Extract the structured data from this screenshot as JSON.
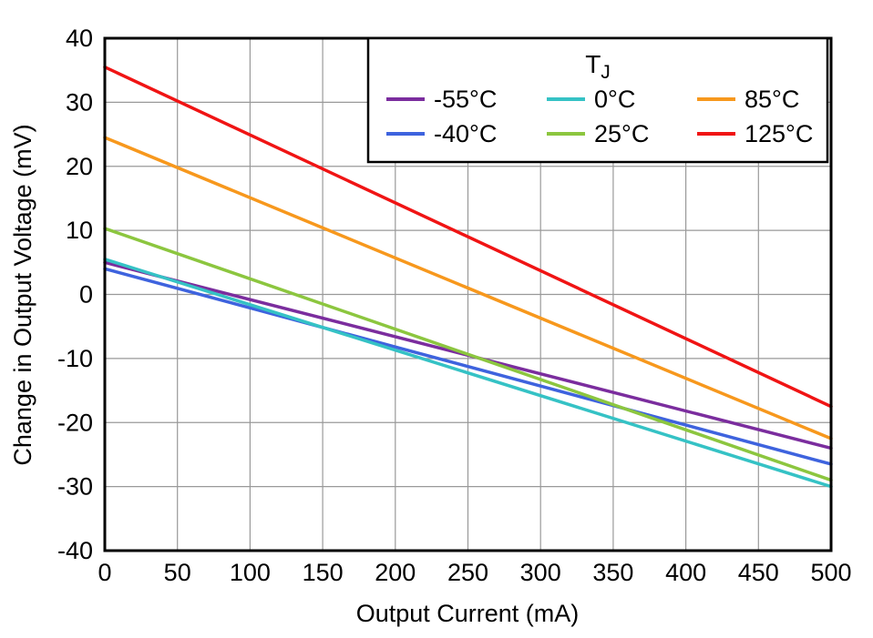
{
  "chart_data": {
    "type": "line",
    "title": "",
    "xlabel": "Output Current (mA)",
    "ylabel": "Change in Output Voltage (mV)",
    "xlim": [
      0,
      500
    ],
    "ylim": [
      -40,
      40
    ],
    "xticks": [
      0,
      50,
      100,
      150,
      200,
      250,
      300,
      350,
      400,
      450,
      500
    ],
    "yticks": [
      -40,
      -30,
      -20,
      -10,
      0,
      10,
      20,
      30,
      40
    ],
    "grid": true,
    "legend": {
      "title": "T",
      "title_subscript": "J",
      "position": "top-right-inside"
    },
    "colors": {
      "grid": "#999999",
      "axis": "#000000",
      "background": "#ffffff"
    },
    "series": [
      {
        "name": "-55°C",
        "color": "#7B2D9E",
        "x": [
          0,
          500
        ],
        "y": [
          5.0,
          -24.0
        ]
      },
      {
        "name": "-40°C",
        "color": "#3E63DE",
        "x": [
          0,
          500
        ],
        "y": [
          4.0,
          -26.5
        ]
      },
      {
        "name": "0°C",
        "color": "#35C2C5",
        "x": [
          0,
          500
        ],
        "y": [
          5.5,
          -30.0
        ]
      },
      {
        "name": "25°C",
        "color": "#8CC63F",
        "x": [
          0,
          500
        ],
        "y": [
          10.3,
          -29.0
        ]
      },
      {
        "name": "85°C",
        "color": "#F7981D",
        "x": [
          0,
          500
        ],
        "y": [
          24.5,
          -22.5
        ]
      },
      {
        "name": "125°C",
        "color": "#F01414",
        "x": [
          0,
          500
        ],
        "y": [
          35.5,
          -17.5
        ]
      }
    ]
  }
}
